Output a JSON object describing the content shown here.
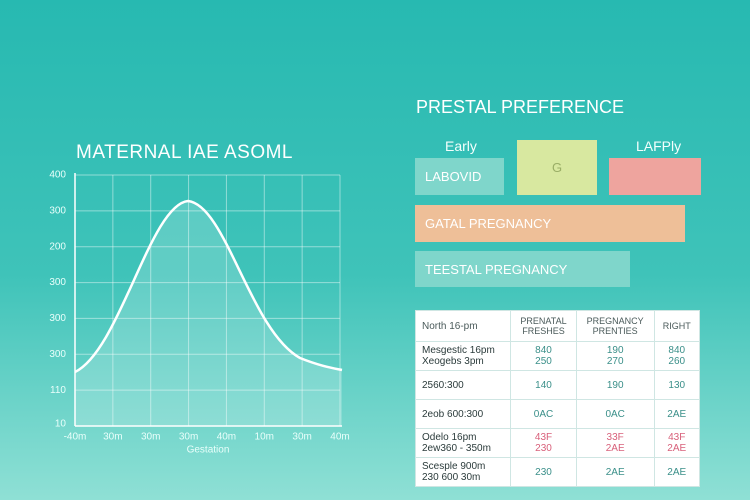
{
  "chart_panel": {
    "title": "MATERNAL IAE ASOML",
    "y_labels": [
      "400",
      "300",
      "200",
      "300",
      "300",
      "300",
      "110",
      "10"
    ],
    "x_labels": [
      "-40m",
      "30m",
      "30m",
      "30m",
      "40m",
      "10m",
      "30m",
      "40m"
    ],
    "x_title": "Gestation"
  },
  "preference_panel": {
    "title": "PRESTAL PREFERENCE",
    "early_label": "Early",
    "late_label": "LAFPly",
    "box_labels": [
      "LABOVID",
      "G"
    ],
    "bars": [
      "GATAL PREGNANCY",
      "TEESTAL PREGNANCY"
    ]
  },
  "table": {
    "header": [
      "North 16-pm",
      "PRENATAL\nFRESHES",
      "PREGNANCY\nPRENTIES",
      "RIGHT"
    ],
    "rows": [
      [
        "Mesgestic 16pm\nXeogebs 3pm",
        "840\n250",
        "190\n270",
        "840\n260"
      ],
      [
        "2560:300",
        "140",
        "190",
        "130"
      ],
      [
        "2eob 600:300",
        "0AC",
        "0AC",
        "2AE"
      ],
      [
        "Odelo 16pm\n2ew360 - 350m",
        "43F\n230",
        "33F\n2AE",
        "43F\n2AE"
      ],
      [
        "Scesple 900m\n230 600 30m",
        "230",
        "2AE",
        "2AE"
      ]
    ]
  }
}
